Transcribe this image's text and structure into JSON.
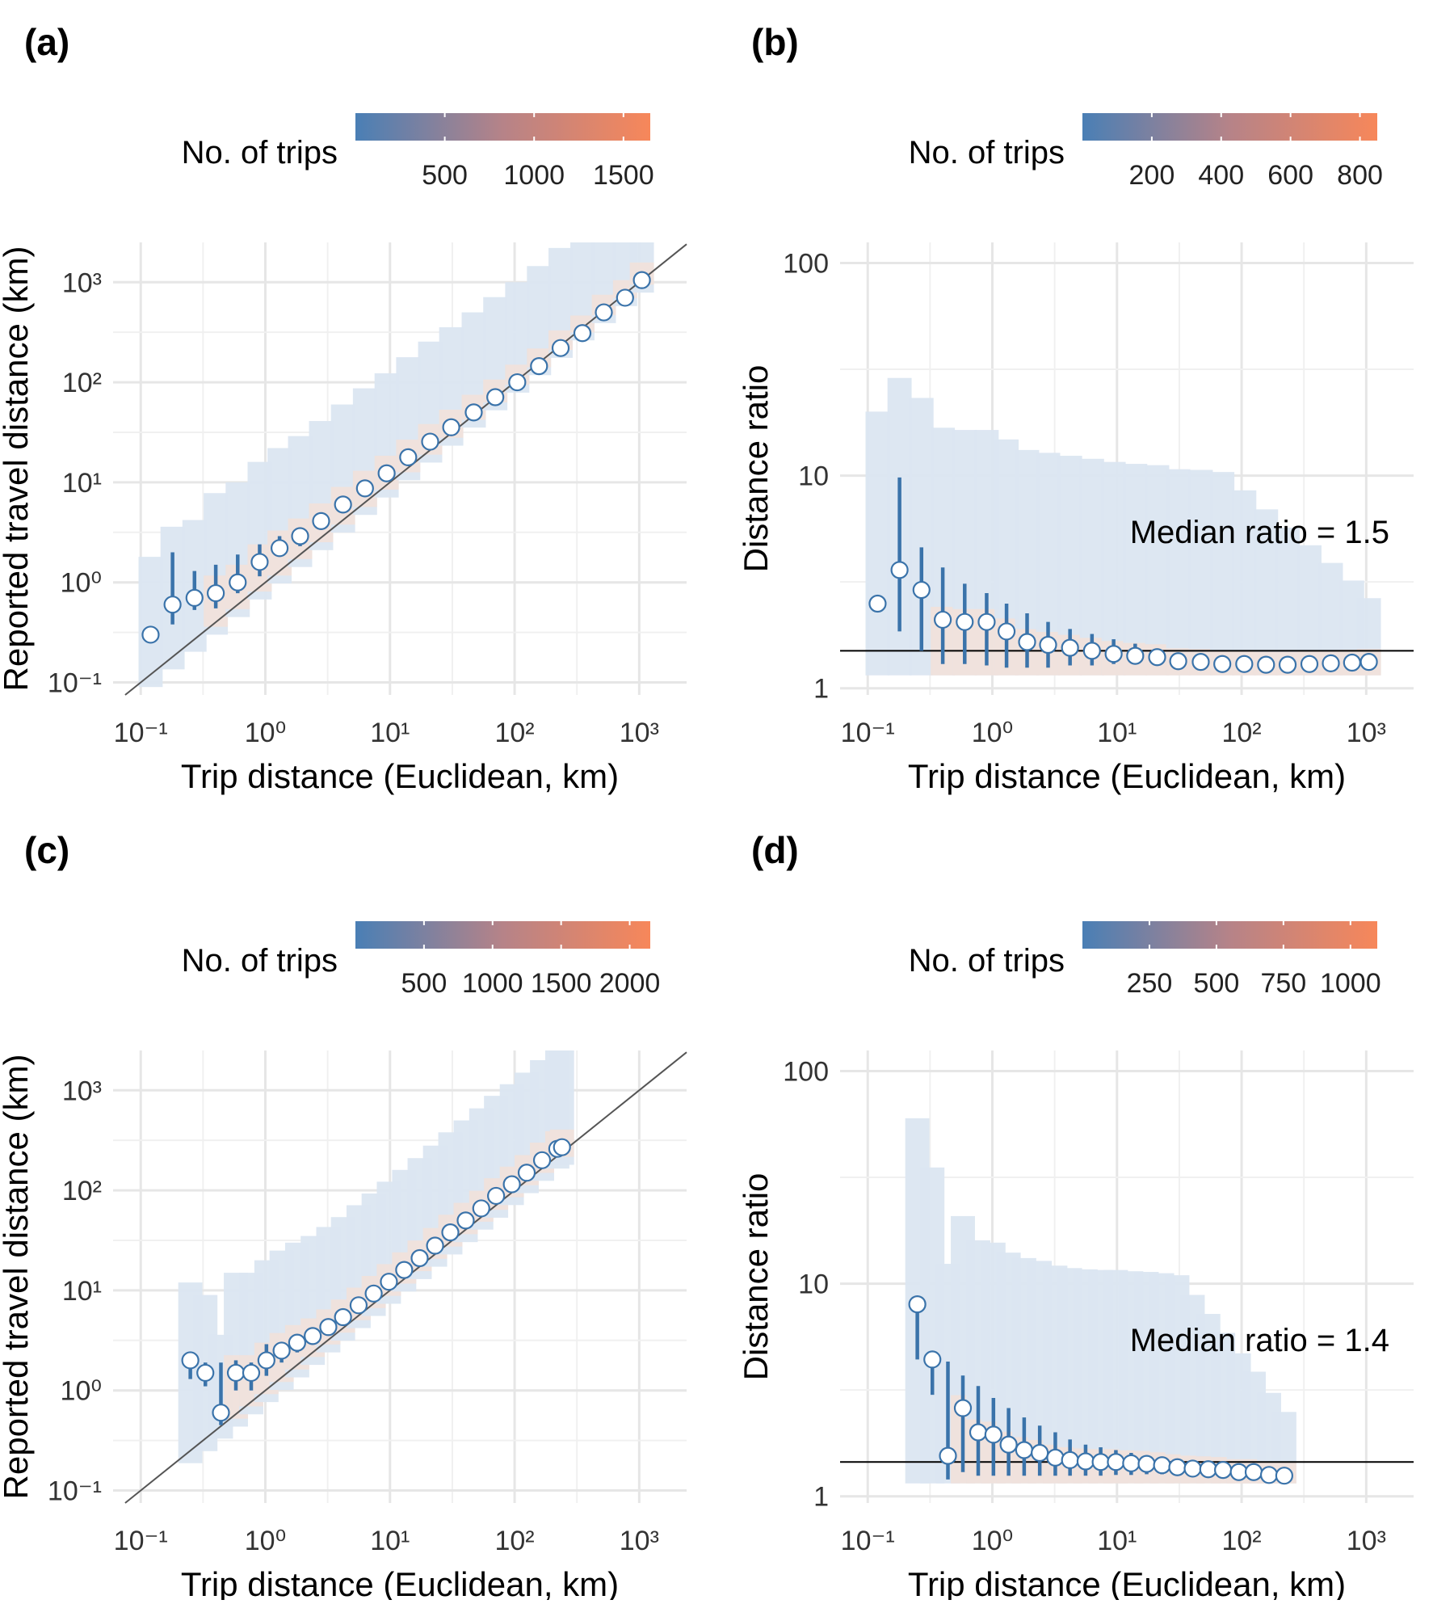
{
  "figure": {
    "colors": {
      "low": "#4a7fb5",
      "high": "#f7875a",
      "grid": "#ebebeb",
      "point_stroke": "#3a73aa",
      "error_bar": "#3a73aa"
    },
    "panels": [
      {
        "panel_label": "(a)",
        "legend_title": "No. of trips",
        "legend_ticks": [
          500,
          1000,
          1500
        ],
        "legend_max": 1650,
        "xlabel": "Trip distance (Euclidean, km)",
        "ylabel": "Reported travel distance (km)",
        "annotation": "",
        "chart_data": {
          "type": "scatter",
          "x_scale": "log10",
          "y_scale": "log10",
          "xlim": [
            0.06,
            2400
          ],
          "ylim": [
            0.075,
            2500
          ],
          "x_ticks": [
            0.1,
            1,
            10,
            100,
            1000
          ],
          "x_tick_labels": [
            "10⁻¹",
            "10⁰",
            "10¹",
            "10²",
            "10³"
          ],
          "y_ticks": [
            0.1,
            1,
            10,
            100,
            1000
          ],
          "y_tick_labels": [
            "10⁻¹",
            "10⁰",
            "10¹",
            "10²",
            "10³"
          ],
          "reference_line": "identity",
          "points": {
            "x": [
              0.12,
              0.18,
              0.27,
              0.4,
              0.6,
              0.9,
              1.3,
              1.9,
              2.8,
              4.2,
              6.3,
              9.4,
              14,
              21,
              31,
              47,
              70,
              105,
              157,
              234,
              350,
              520,
              770,
              1050
            ],
            "y": [
              0.3,
              0.6,
              0.7,
              0.78,
              1.0,
              1.6,
              2.2,
              2.9,
              4.1,
              6.0,
              8.7,
              12.3,
              17.8,
              25.5,
              35.5,
              50,
              71,
              100,
              145,
              220,
              310,
              500,
              700,
              1050
            ],
            "ylo": [
              null,
              0.38,
              0.53,
              0.55,
              0.78,
              1.15,
              1.8,
              2.3,
              3.5,
              5.2,
              7.8,
              11,
              16,
              23,
              32,
              45,
              64,
              90,
              131,
              200,
              280,
              450,
              630,
              950
            ],
            "yhi": [
              null,
              2.0,
              1.3,
              1.5,
              1.9,
              2.4,
              2.9,
              3.5,
              5.0,
              7.0,
              10,
              14,
              20,
              28.5,
              39,
              55,
              78,
              110,
              160,
              240,
              340,
              550,
              770,
              1150
            ]
          }
        }
      },
      {
        "panel_label": "(b)",
        "legend_title": "No. of trips",
        "legend_ticks": [
          200,
          400,
          600,
          800
        ],
        "legend_max": 850,
        "xlabel": "Trip distance (Euclidean, km)",
        "ylabel": "Distance ratio",
        "annotation": "Median ratio = 1.5",
        "chart_data": {
          "type": "scatter",
          "x_scale": "log10",
          "y_scale": "log10",
          "xlim": [
            0.06,
            2400
          ],
          "ylim": [
            0.93,
            125
          ],
          "x_ticks": [
            0.1,
            1,
            10,
            100,
            1000
          ],
          "x_tick_labels": [
            "10⁻¹",
            "10⁰",
            "10¹",
            "10²",
            "10³"
          ],
          "y_ticks": [
            1,
            10,
            100
          ],
          "y_tick_labels": [
            "1",
            "10",
            "100"
          ],
          "reference_line": 1.5,
          "points": {
            "x": [
              0.12,
              0.18,
              0.27,
              0.4,
              0.6,
              0.9,
              1.3,
              1.9,
              2.8,
              4.2,
              6.3,
              9.4,
              14,
              21,
              31,
              47,
              70,
              105,
              157,
              234,
              350,
              520,
              770,
              1050
            ],
            "y": [
              2.5,
              3.6,
              2.9,
              2.1,
              2.05,
              2.05,
              1.85,
              1.65,
              1.6,
              1.55,
              1.5,
              1.45,
              1.42,
              1.4,
              1.34,
              1.33,
              1.3,
              1.3,
              1.29,
              1.29,
              1.3,
              1.31,
              1.32,
              1.33
            ],
            "ylo": [
              null,
              1.85,
              1.5,
              1.3,
              1.3,
              1.28,
              1.25,
              1.25,
              1.25,
              1.28,
              1.28,
              1.3,
              1.3,
              1.3,
              1.28,
              1.28,
              1.26,
              1.26,
              1.25,
              1.25,
              1.26,
              1.27,
              1.28,
              1.28
            ],
            "yhi": [
              null,
              9.8,
              4.6,
              3.7,
              3.1,
              2.8,
              2.5,
              2.25,
              2.05,
              1.9,
              1.8,
              1.7,
              1.62,
              1.52,
              1.45,
              1.42,
              1.38,
              1.37,
              1.35,
              1.35,
              1.35,
              1.38,
              1.4,
              1.45
            ]
          }
        }
      },
      {
        "panel_label": "(c)",
        "legend_title": "No. of trips",
        "legend_ticks": [
          500,
          1000,
          1500,
          2000
        ],
        "legend_ticks_text": [
          "500",
          "1000",
          "1500",
          "2000"
        ],
        "legend_max": 2150,
        "xlabel": "Trip distance (Euclidean, km)",
        "ylabel": "Reported travel distance (km)",
        "annotation": "",
        "chart_data": {
          "type": "scatter",
          "x_scale": "log10",
          "y_scale": "log10",
          "xlim": [
            0.06,
            2400
          ],
          "ylim": [
            0.075,
            2500
          ],
          "x_ticks": [
            0.1,
            1,
            10,
            100,
            1000
          ],
          "x_tick_labels": [
            "10⁻¹",
            "10⁰",
            "10¹",
            "10²",
            "10³"
          ],
          "y_ticks": [
            0.1,
            1,
            10,
            100,
            1000
          ],
          "y_tick_labels": [
            "10⁻¹",
            "10⁰",
            "10¹",
            "10²",
            "10³"
          ],
          "reference_line": "identity",
          "points": {
            "x": [
              0.25,
              0.33,
              0.44,
              0.58,
              0.77,
              1.02,
              1.35,
              1.8,
              2.4,
              3.2,
              4.2,
              5.6,
              7.4,
              9.8,
              13,
              17.3,
              23,
              30.5,
              40.5,
              54,
              71,
              95,
              125,
              166,
              220,
              240
            ],
            "y": [
              2.0,
              1.5,
              0.6,
              1.5,
              1.5,
              2.0,
              2.5,
              3.0,
              3.5,
              4.3,
              5.4,
              7.1,
              9.3,
              12.2,
              16,
              21,
              28,
              38,
              50,
              66,
              88,
              115,
              150,
              200,
              260,
              270
            ],
            "ylo": [
              1.3,
              1.1,
              0.45,
              1.0,
              1.0,
              1.4,
              1.9,
              2.4,
              3.0,
              3.8,
              4.8,
              6.4,
              8.5,
              11.2,
              14.8,
              19.5,
              26,
              35,
              46,
              61,
              81,
              106,
              138,
              184,
              240,
              250
            ],
            "yhi": [
              null,
              1.9,
              1.9,
              2.0,
              1.9,
              2.9,
              3.0,
              3.6,
              4.1,
              4.9,
              6.1,
              7.9,
              10.2,
              13.4,
              17.5,
              23,
              30.5,
              41,
              54,
              71,
              95,
              124,
              162,
              216,
              280,
              290
            ]
          }
        }
      },
      {
        "panel_label": "(d)",
        "legend_title": "No. of trips",
        "legend_ticks": [
          250,
          500,
          750,
          1000
        ],
        "legend_max": 1100,
        "xlabel": "Trip distance (Euclidean, km)",
        "ylabel": "Distance ratio",
        "annotation": "Median ratio = 1.4",
        "chart_data": {
          "type": "scatter",
          "x_scale": "log10",
          "y_scale": "log10",
          "xlim": [
            0.06,
            2400
          ],
          "ylim": [
            0.93,
            125
          ],
          "x_ticks": [
            0.1,
            1,
            10,
            100,
            1000
          ],
          "x_tick_labels": [
            "10⁻¹",
            "10⁰",
            "10¹",
            "10²",
            "10³"
          ],
          "y_ticks": [
            1,
            10,
            100
          ],
          "y_tick_labels": [
            "1",
            "10",
            "100"
          ],
          "reference_line": 1.45,
          "points": {
            "x": [
              0.25,
              0.33,
              0.44,
              0.58,
              0.77,
              1.02,
              1.35,
              1.8,
              2.4,
              3.2,
              4.2,
              5.6,
              7.4,
              9.8,
              13,
              17.3,
              23,
              30.5,
              40.5,
              54,
              71,
              95,
              125,
              166,
              220
            ],
            "y": [
              8.0,
              4.4,
              1.55,
              2.6,
              2.0,
              1.95,
              1.75,
              1.65,
              1.6,
              1.52,
              1.48,
              1.46,
              1.45,
              1.45,
              1.43,
              1.42,
              1.4,
              1.37,
              1.35,
              1.34,
              1.33,
              1.3,
              1.3,
              1.26,
              1.25
            ],
            "ylo": [
              4.4,
              3.0,
              1.2,
              1.3,
              1.25,
              1.25,
              1.25,
              1.25,
              1.25,
              1.25,
              1.25,
              1.25,
              1.25,
              1.26,
              1.26,
              1.27,
              1.27,
              1.26,
              1.26,
              1.26,
              1.25,
              1.24,
              1.24,
              1.22,
              1.22
            ],
            "yhi": [
              null,
              null,
              4.3,
              3.7,
              3.3,
              2.9,
              2.6,
              2.35,
              2.15,
              2.0,
              1.85,
              1.75,
              1.7,
              1.65,
              1.6,
              1.55,
              1.5,
              1.45,
              1.42,
              1.4,
              1.38,
              1.36,
              1.35,
              1.3,
              1.28
            ]
          }
        }
      }
    ]
  }
}
